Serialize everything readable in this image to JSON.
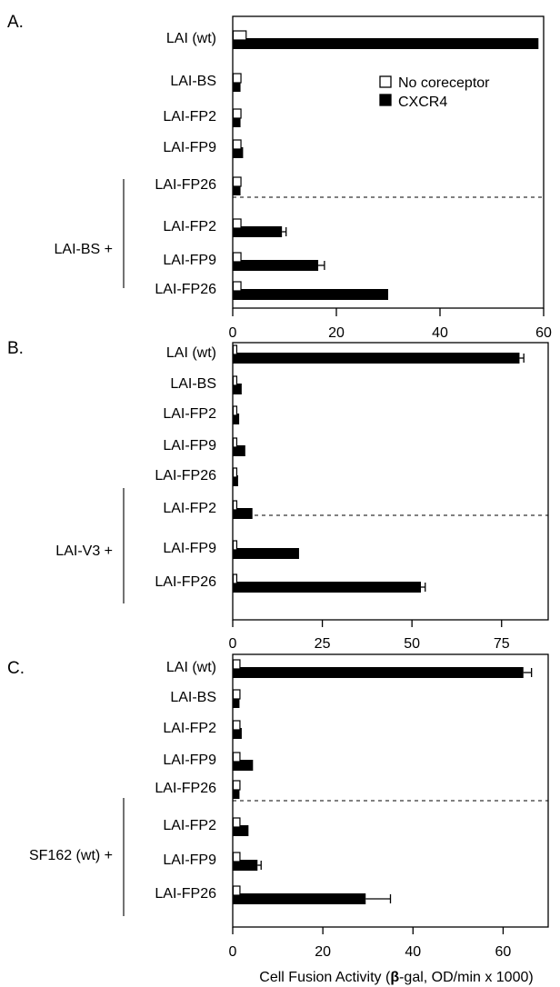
{
  "legend": {
    "items": [
      {
        "label": "No coreceptor",
        "fill": "#ffffff"
      },
      {
        "label": "CXCR4",
        "fill": "#000000"
      }
    ]
  },
  "xlabel": {
    "prefix": "Cell Fusion Activity (",
    "beta": "β",
    "suffix": "-gal, OD/min x 1000)"
  },
  "chart_data": [
    {
      "type": "bar",
      "orientation": "horizontal",
      "panel": "A.",
      "group_label": "LAI-BS +",
      "categories": [
        "LAI (wt)",
        "LAI-BS",
        "LAI-FP2",
        "LAI-FP9",
        "LAI-FP26",
        "LAI-FP2",
        "LAI-FP9",
        "LAI-FP26"
      ],
      "series": [
        {
          "name": "No coreceptor",
          "values": [
            2.5,
            1.5,
            1.5,
            1.5,
            1.5,
            1.5,
            1.5,
            1.5
          ]
        },
        {
          "name": "CXCR4",
          "values": [
            59,
            1.5,
            1.5,
            2,
            1.5,
            9.5,
            16.5,
            30
          ],
          "errors": [
            0,
            0,
            0,
            0,
            0,
            0.8,
            1.2,
            0
          ]
        }
      ],
      "xlim": [
        0,
        60
      ],
      "xticks": [
        "0",
        "20",
        "40",
        "60"
      ],
      "separator_after_index": 4
    },
    {
      "type": "bar",
      "orientation": "horizontal",
      "panel": "B.",
      "group_label": "LAI-V3 +",
      "categories": [
        "LAI (wt)",
        "LAI-BS",
        "LAI-FP2",
        "LAI-FP9",
        "LAI-FP26",
        "LAI-FP2",
        "LAI-FP9",
        "LAI-FP26"
      ],
      "series": [
        {
          "name": "No coreceptor",
          "values": [
            1,
            1,
            1,
            1,
            1,
            1,
            1,
            1
          ]
        },
        {
          "name": "CXCR4",
          "values": [
            80,
            2.5,
            1.8,
            3.5,
            1.5,
            5.5,
            18.5,
            52.5
          ],
          "errors": [
            1.2,
            0,
            0,
            0,
            0,
            0,
            0,
            1.2
          ]
        }
      ],
      "xlim": [
        0,
        88
      ],
      "xticks": [
        "0",
        "25",
        "50",
        "75"
      ],
      "separator_after_index": 4
    },
    {
      "type": "bar",
      "orientation": "horizontal",
      "panel": "C.",
      "group_label": "SF162 (wt) +",
      "categories": [
        "LAI (wt)",
        "LAI-BS",
        "LAI-FP2",
        "LAI-FP9",
        "LAI-FP26",
        "LAI-FP2",
        "LAI-FP9",
        "LAI-FP26"
      ],
      "series": [
        {
          "name": "No coreceptor",
          "values": [
            1.5,
            1.5,
            1.5,
            1.5,
            1.5,
            1.5,
            1.5,
            1.5
          ]
        },
        {
          "name": "CXCR4",
          "values": [
            64.5,
            1.5,
            2,
            4.5,
            1.5,
            3.5,
            5.5,
            29.5
          ],
          "errors": [
            1.8,
            0,
            0,
            0,
            0,
            0,
            0.8,
            5.5
          ]
        }
      ],
      "xlim": [
        0,
        70
      ],
      "xticks": [
        "0",
        "20",
        "40",
        "60"
      ],
      "separator_after_index": 4
    }
  ]
}
